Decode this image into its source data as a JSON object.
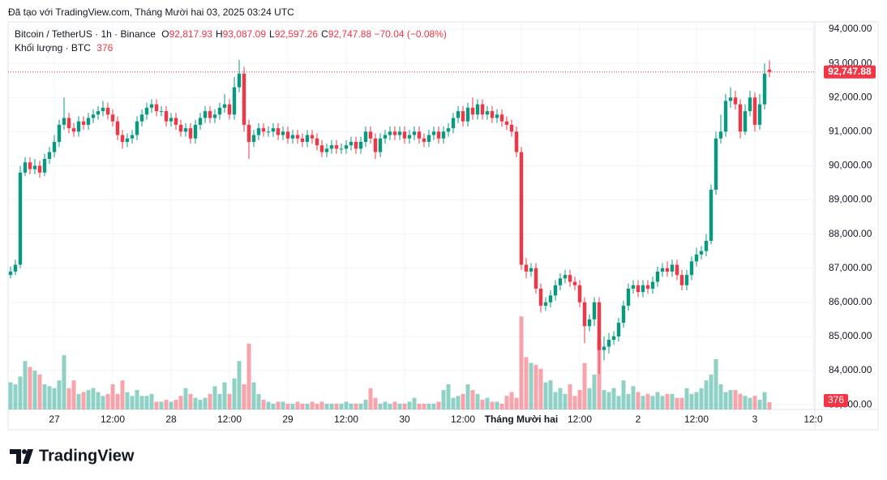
{
  "header": {
    "attribution": "Đã tạo với TradingView.com, Tháng Mười hai 03, 2025 03:24 UTC",
    "symbol": "Bitcoin / TetherUS · 1h · Binance",
    "ohlc": [
      {
        "label": "O",
        "value": "92,817.93"
      },
      {
        "label": "H",
        "value": "93,087.09"
      },
      {
        "label": "L",
        "value": "92,597.26"
      },
      {
        "label": "C",
        "value": "92,747.88"
      }
    ],
    "change": "−70.04 (−0.08%)",
    "volume_label": "Khối lượng · BTC",
    "volume_value": "376",
    "brand": "TradingView"
  },
  "chart_data": {
    "type": "candlestick",
    "open": [
      86800,
      86900,
      87100,
      89800,
      90100,
      89900,
      90000,
      89800,
      90200,
      90400,
      90700,
      91200,
      91400,
      91100,
      91000,
      91300,
      91200,
      91400,
      91500,
      91600,
      91700,
      91500,
      91300,
      90900,
      90700,
      90800,
      90900,
      91300,
      91500,
      91700,
      91800,
      91600,
      91600,
      91300,
      91400,
      91200,
      91000,
      91100,
      90800,
      91200,
      91400,
      91600,
      91400,
      91500,
      91700,
      91800,
      91500,
      92300,
      92700,
      91200,
      90700,
      90900,
      91100,
      91000,
      91000,
      91100,
      90900,
      91000,
      90800,
      90900,
      90800,
      90700,
      90900,
      90800,
      90600,
      90400,
      90500,
      90600,
      90500,
      90500,
      90600,
      90700,
      90500,
      90700,
      91000,
      90800,
      90400,
      90800,
      90900,
      91000,
      90900,
      91000,
      90800,
      90900,
      91000,
      90800,
      90700,
      90900,
      91000,
      90800,
      91000,
      91100,
      91400,
      91600,
      91300,
      91700,
      91500,
      91800,
      91500,
      91600,
      91400,
      91500,
      91300,
      91200,
      91000,
      90400,
      87100,
      86900,
      87000,
      86400,
      85900,
      86000,
      86200,
      86500,
      86700,
      86800,
      86600,
      86500,
      86000,
      85300,
      85500,
      86000,
      84600,
      84700,
      84900,
      85000,
      85400,
      85900,
      86400,
      86500,
      86300,
      86500,
      86400,
      86600,
      86900,
      87000,
      86900,
      87100,
      86800,
      86500,
      86800,
      87200,
      87400,
      87500,
      87800,
      89300,
      90800,
      91000,
      91900,
      92000,
      91800,
      91000,
      91600,
      92000,
      91200,
      91800,
      92817.93
    ],
    "high": [
      87050,
      87250,
      90000,
      90250,
      90250,
      90200,
      90150,
      90350,
      90550,
      90900,
      91350,
      92000,
      91550,
      91250,
      91450,
      91450,
      91550,
      91650,
      91750,
      91900,
      91850,
      91650,
      91450,
      91050,
      90950,
      91050,
      91450,
      91650,
      91850,
      91950,
      91950,
      91750,
      91750,
      91550,
      91550,
      91350,
      91250,
      91250,
      91350,
      91550,
      91750,
      91750,
      91650,
      91850,
      92100,
      91950,
      92600,
      93100,
      92900,
      91350,
      91050,
      91250,
      91250,
      91150,
      91250,
      91250,
      91150,
      91150,
      91050,
      91050,
      90950,
      91050,
      91050,
      90950,
      90750,
      90650,
      90750,
      90750,
      90650,
      90750,
      90850,
      90850,
      90850,
      91150,
      91150,
      90950,
      90950,
      91050,
      91150,
      91150,
      91150,
      91150,
      91050,
      91150,
      91150,
      90950,
      91050,
      91150,
      91150,
      91150,
      91250,
      91550,
      91750,
      91750,
      91850,
      92000,
      91950,
      91950,
      91750,
      91750,
      91650,
      91650,
      91450,
      91350,
      91150,
      90550,
      87300,
      87150,
      87150,
      86550,
      86150,
      86350,
      86650,
      86850,
      86950,
      86950,
      86750,
      86650,
      86150,
      85650,
      86150,
      86150,
      85000,
      85100,
      85150,
      85550,
      86050,
      86550,
      86650,
      86650,
      86650,
      86650,
      86750,
      87050,
      87150,
      87200,
      87250,
      87250,
      86950,
      86950,
      87350,
      87600,
      87650,
      88000,
      89450,
      91000,
      91500,
      92100,
      92300,
      92200,
      91950,
      91800,
      92200,
      92150,
      92100,
      93000,
      93087.09
    ],
    "low": [
      86700,
      86800,
      87000,
      89700,
      89750,
      89750,
      89650,
      89700,
      90050,
      90250,
      90550,
      91050,
      90950,
      90850,
      90850,
      91050,
      91050,
      91250,
      91350,
      91450,
      91350,
      91150,
      90750,
      90500,
      90550,
      90650,
      90750,
      91150,
      91350,
      91550,
      91450,
      91450,
      91150,
      91150,
      91050,
      90850,
      90850,
      90650,
      90650,
      91050,
      91250,
      91250,
      91250,
      91350,
      91550,
      91350,
      91350,
      92150,
      91000,
      90200,
      90550,
      90750,
      90850,
      90850,
      90850,
      90750,
      90750,
      90650,
      90650,
      90650,
      90550,
      90550,
      90650,
      90450,
      90250,
      90250,
      90350,
      90350,
      90350,
      90350,
      90450,
      90350,
      90350,
      90550,
      90650,
      90200,
      90250,
      90650,
      90750,
      90750,
      90750,
      90650,
      90650,
      90750,
      90650,
      90550,
      90550,
      90750,
      90650,
      90650,
      90850,
      90950,
      91250,
      91150,
      91150,
      91350,
      91350,
      91350,
      91350,
      91250,
      91250,
      91150,
      91050,
      90850,
      90250,
      86950,
      86700,
      86750,
      86250,
      85700,
      85750,
      85850,
      86050,
      86350,
      86550,
      86450,
      86350,
      85850,
      84800,
      85150,
      85300,
      83900,
      84300,
      84500,
      84750,
      84850,
      85250,
      85750,
      86250,
      86150,
      86150,
      86250,
      86250,
      86450,
      86750,
      86750,
      86750,
      86650,
      86350,
      86350,
      86650,
      87050,
      87250,
      87350,
      87700,
      89150,
      90650,
      90850,
      91700,
      91650,
      90800,
      90900,
      91450,
      91000,
      91050,
      91650,
      92597.26
    ],
    "close": [
      86900,
      87100,
      89800,
      90100,
      89900,
      90000,
      89800,
      90200,
      90400,
      90700,
      91200,
      91400,
      91100,
      91000,
      91300,
      91200,
      91400,
      91500,
      91600,
      91700,
      91500,
      91300,
      90900,
      90700,
      90800,
      90900,
      91300,
      91500,
      91700,
      91800,
      91600,
      91600,
      91300,
      91400,
      91200,
      91000,
      91100,
      90800,
      91200,
      91400,
      91600,
      91400,
      91500,
      91700,
      91800,
      91500,
      92300,
      92700,
      91200,
      90700,
      90900,
      91100,
      91000,
      91000,
      91100,
      90900,
      91000,
      90800,
      90900,
      90800,
      90700,
      90900,
      90800,
      90600,
      90400,
      90500,
      90600,
      90500,
      90500,
      90600,
      90700,
      90500,
      90700,
      91000,
      90800,
      90400,
      90800,
      90900,
      91000,
      90900,
      91000,
      90800,
      90900,
      91000,
      90800,
      90700,
      90900,
      91000,
      90800,
      91000,
      91100,
      91400,
      91600,
      91300,
      91700,
      91500,
      91800,
      91500,
      91600,
      91400,
      91500,
      91300,
      91200,
      91000,
      90400,
      87100,
      86900,
      87000,
      86400,
      85900,
      86000,
      86200,
      86500,
      86700,
      86800,
      86600,
      86500,
      86000,
      85300,
      85500,
      86000,
      84600,
      84700,
      84900,
      85000,
      85400,
      85900,
      86400,
      86500,
      86300,
      86500,
      86400,
      86600,
      86900,
      87000,
      86900,
      87100,
      86800,
      86500,
      86800,
      87200,
      87400,
      87500,
      87800,
      89300,
      90800,
      91000,
      91900,
      92000,
      91800,
      91000,
      91600,
      92000,
      91200,
      91800,
      92700,
      92747.88
    ],
    "volume": [
      1400,
      1300,
      1700,
      2500,
      2200,
      2000,
      1800,
      1300,
      1200,
      1100,
      1500,
      2800,
      1100,
      1500,
      800,
      900,
      1000,
      1100,
      900,
      700,
      800,
      1300,
      800,
      1500,
      900,
      700,
      1000,
      700,
      700,
      800,
      400,
      400,
      500,
      400,
      500,
      700,
      1100,
      800,
      600,
      500,
      600,
      800,
      1200,
      800,
      1400,
      800,
      1600,
      2500,
      1300,
      3400,
      1400,
      800,
      500,
      400,
      300,
      400,
      400,
      300,
      300,
      400,
      300,
      300,
      400,
      300,
      400,
      300,
      300,
      300,
      300,
      400,
      300,
      300,
      300,
      500,
      1100,
      600,
      300,
      400,
      300,
      400,
      300,
      300,
      400,
      600,
      300,
      300,
      300,
      300,
      400,
      1000,
      1300,
      600,
      700,
      800,
      1300,
      1000,
      800,
      500,
      600,
      400,
      400,
      300,
      700,
      900,
      600,
      4800,
      2700,
      2400,
      2300,
      2100,
      1400,
      1500,
      900,
      1100,
      800,
      1300,
      700,
      1000,
      2400,
      1100,
      1800,
      3600,
      1000,
      900,
      1100,
      700,
      1500,
      800,
      1200,
      900,
      700,
      800,
      700,
      900,
      700,
      800,
      800,
      600,
      600,
      1100,
      800,
      900,
      1100,
      1500,
      1800,
      2600,
      1300,
      900,
      1000,
      1000,
      800,
      700,
      600,
      700,
      500,
      900,
      376
    ],
    "last_close_label": "92,747.88",
    "up_color": "#089981",
    "down_color": "#f23645",
    "ylim": [
      82860,
      94215
    ],
    "yticks": [
      {
        "value": 83000,
        "label": "83,000.00"
      },
      {
        "value": 84000,
        "label": "84,000.00"
      },
      {
        "value": 85000,
        "label": "85,000.00"
      },
      {
        "value": 86000,
        "label": "86,000.00"
      },
      {
        "value": 87000,
        "label": "87,000.00"
      },
      {
        "value": 88000,
        "label": "88,000.00"
      },
      {
        "value": 89000,
        "label": "89,000.00"
      },
      {
        "value": 90000,
        "label": "90,000.00"
      },
      {
        "value": 91000,
        "label": "91,000.00"
      },
      {
        "value": 92000,
        "label": "92,000.00"
      },
      {
        "value": 93000,
        "label": "93,000.00"
      },
      {
        "value": 94000,
        "label": "94,000.00"
      }
    ],
    "xlim": [
      -0.5,
      165.33
    ],
    "xticks": [
      {
        "value": 9,
        "label": "27"
      },
      {
        "value": 21,
        "label": "12:00"
      },
      {
        "value": 33,
        "label": "28"
      },
      {
        "value": 45,
        "label": "12:00"
      },
      {
        "value": 57,
        "label": "29"
      },
      {
        "value": 69,
        "label": "12:00"
      },
      {
        "value": 81,
        "label": "30"
      },
      {
        "value": 93,
        "label": "12:00"
      },
      {
        "value": 105,
        "label": "Tháng Mười hai"
      },
      {
        "value": 117,
        "label": "12:00"
      },
      {
        "value": 129,
        "label": "2"
      },
      {
        "value": 141,
        "label": "12:00"
      },
      {
        "value": 153,
        "label": "3"
      },
      {
        "value": 165,
        "label": "12:0"
      }
    ],
    "volume_lim": [
      0,
      20000
    ],
    "grid": true
  }
}
